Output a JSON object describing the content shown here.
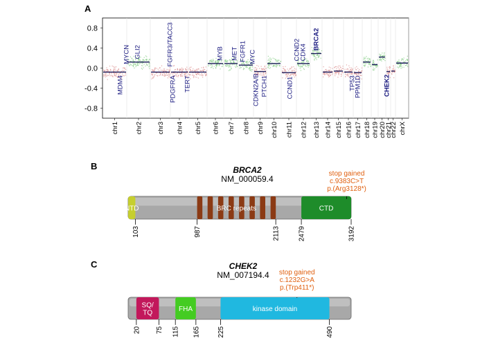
{
  "panels": {
    "a": {
      "label": "A",
      "chart_data": {
        "type": "scatter",
        "ylim": [
          -1.0,
          1.0
        ],
        "yticks": [
          "0.8",
          "0.4",
          "0.0",
          "-0.4",
          "-0.8"
        ],
        "ytick_values": [
          0.8,
          0.4,
          0.0,
          -0.4,
          -0.8
        ],
        "grid": true,
        "chromosomes": [
          {
            "name": "chr1",
            "level": -0.08,
            "x0": 148,
            "x1": 183
          },
          {
            "name": "chr2",
            "level": 0.12,
            "x0": 183,
            "x1": 217
          },
          {
            "name": "chr3",
            "level": -0.08,
            "x0": 217,
            "x1": 246
          },
          {
            "name": "chr4",
            "level": -0.08,
            "x0": 246,
            "x1": 272
          },
          {
            "name": "chr5",
            "level": -0.08,
            "x0": 272,
            "x1": 299
          },
          {
            "name": "chr6",
            "level": 0.09,
            "x0": 299,
            "x1": 323
          },
          {
            "name": "chr7",
            "level": 0.09,
            "x0": 323,
            "x1": 344
          },
          {
            "name": "chr8",
            "level": 0.06,
            "x0": 344,
            "x1": 366
          },
          {
            "name": "chr9",
            "level": -0.07,
            "x0": 366,
            "x1": 385
          },
          {
            "name": "chr10",
            "level": 0.09,
            "x0": 385,
            "x1": 406
          },
          {
            "name": "chr11",
            "level": -0.09,
            "x0": 406,
            "x1": 428
          },
          {
            "name": "chr12",
            "level": 0.09,
            "x0": 428,
            "x1": 448
          },
          {
            "name": "chr13",
            "level": 0.29,
            "x0": 448,
            "x1": 465
          },
          {
            "name": "chr14",
            "level": -0.08,
            "x0": 465,
            "x1": 481
          },
          {
            "name": "chr15",
            "level": -0.06,
            "x0": 481,
            "x1": 496
          },
          {
            "name": "chr16",
            "level": -0.08,
            "x0": 496,
            "x1": 510
          },
          {
            "name": "chr17",
            "level": -0.09,
            "x0": 510,
            "x1": 523
          },
          {
            "name": "chr18",
            "level": 0.12,
            "x0": 523,
            "x1": 536
          },
          {
            "name": "chr19",
            "level": 0.07,
            "x0": 536,
            "x1": 546
          },
          {
            "name": "chr20",
            "level": 0.22,
            "x0": 546,
            "x1": 557
          },
          {
            "name": "chr21",
            "level": -0.07,
            "x0": 557,
            "x1": 564
          },
          {
            "name": "chr22",
            "level": -0.06,
            "x0": 564,
            "x1": 571
          },
          {
            "name": "chrX",
            "level": 0.1,
            "x0": 571,
            "x1": 590
          }
        ],
        "genes": [
          {
            "name": "MDM4",
            "x": 173,
            "y": -0.12,
            "up": false,
            "bold": false
          },
          {
            "name": "MYCN",
            "x": 182,
            "y": 0.05,
            "up": true,
            "bold": false
          },
          {
            "name": "GLI2",
            "x": 198,
            "y": 0.15,
            "up": true,
            "bold": false
          },
          {
            "name": "FGFR3/TACC3",
            "x": 245,
            "y": 0.0,
            "up": true,
            "bold": false
          },
          {
            "name": "PDGFRA",
            "x": 249,
            "y": -0.12,
            "up": false,
            "bold": false
          },
          {
            "name": "TERT",
            "x": 270,
            "y": -0.12,
            "up": false,
            "bold": false
          },
          {
            "name": "MYB",
            "x": 317,
            "y": 0.12,
            "up": true,
            "bold": false
          },
          {
            "name": "MET",
            "x": 338,
            "y": 0.12,
            "up": true,
            "bold": false
          },
          {
            "name": "FGFR1",
            "x": 350,
            "y": 0.09,
            "up": true,
            "bold": false
          },
          {
            "name": "MYC",
            "x": 364,
            "y": 0.05,
            "up": true,
            "bold": false
          },
          {
            "name": "CDKN2A/B",
            "x": 369,
            "y": -0.08,
            "up": false,
            "bold": false
          },
          {
            "name": "PTCH1",
            "x": 381,
            "y": -0.12,
            "up": false,
            "bold": false
          },
          {
            "name": "CCND1",
            "x": 418,
            "y": -0.14,
            "up": false,
            "bold": false
          },
          {
            "name": "CCND2",
            "x": 428,
            "y": 0.11,
            "up": true,
            "bold": false
          },
          {
            "name": "CDK4",
            "x": 437,
            "y": 0.11,
            "up": true,
            "bold": false
          },
          {
            "name": "BRCA2",
            "x": 456,
            "y": 0.32,
            "up": true,
            "bold": true
          },
          {
            "name": "TP53",
            "x": 508,
            "y": -0.12,
            "up": false,
            "bold": false
          },
          {
            "name": "PPM1D",
            "x": 516,
            "y": -0.12,
            "up": false,
            "bold": false
          },
          {
            "name": "CHEK2",
            "x": 558,
            "y": -0.1,
            "up": false,
            "bold": true
          }
        ]
      }
    },
    "b": {
      "label": "B",
      "gene": "BRCA2",
      "transcript": "NM_000059.4",
      "length": 3192,
      "variant": {
        "line1": "stop gained",
        "line2": "c.9383C>T",
        "line3": "p.(Arg3128*)",
        "position": 3128,
        "color": "#e06010"
      },
      "domains": [
        {
          "name": "NTD",
          "start": 1,
          "end": 103,
          "color": "#c6cf2e",
          "label_color": "#ffffff"
        },
        {
          "name": "BRC repeats",
          "start": 987,
          "end": 2113,
          "color": "#8b3a14",
          "label_color": "#ffffff",
          "repeats": 8
        },
        {
          "name": "CTD",
          "start": 2479,
          "end": 3192,
          "color": "#1e8c2a",
          "label_color": "#ffffff"
        }
      ],
      "ticks": [
        "103",
        "987",
        "2113",
        "2479",
        "3192"
      ],
      "tick_values": [
        103,
        987,
        2113,
        2479,
        3192
      ]
    },
    "c": {
      "label": "C",
      "gene": "CHEK2",
      "transcript": "NM_007194.4",
      "length": 543,
      "variant": {
        "line1": "stop gained",
        "line2": "c.1232G>A",
        "line3": "p.(Trp411*)",
        "position": 411,
        "color": "#e06010"
      },
      "domains": [
        {
          "name": "SQ/\nTQ",
          "start": 20,
          "end": 75,
          "color": "#c2185b",
          "label_color": "#ffffff"
        },
        {
          "name": "FHA",
          "start": 115,
          "end": 165,
          "color": "#44cc22",
          "label_color": "#ffffff"
        },
        {
          "name": "kinase domain",
          "start": 225,
          "end": 490,
          "color": "#20b8e0",
          "label_color": "#ffffff"
        }
      ],
      "ticks": [
        "20",
        "75",
        "115",
        "165",
        "225",
        "490"
      ],
      "tick_values": [
        20,
        75,
        115,
        165,
        225,
        490
      ]
    }
  }
}
